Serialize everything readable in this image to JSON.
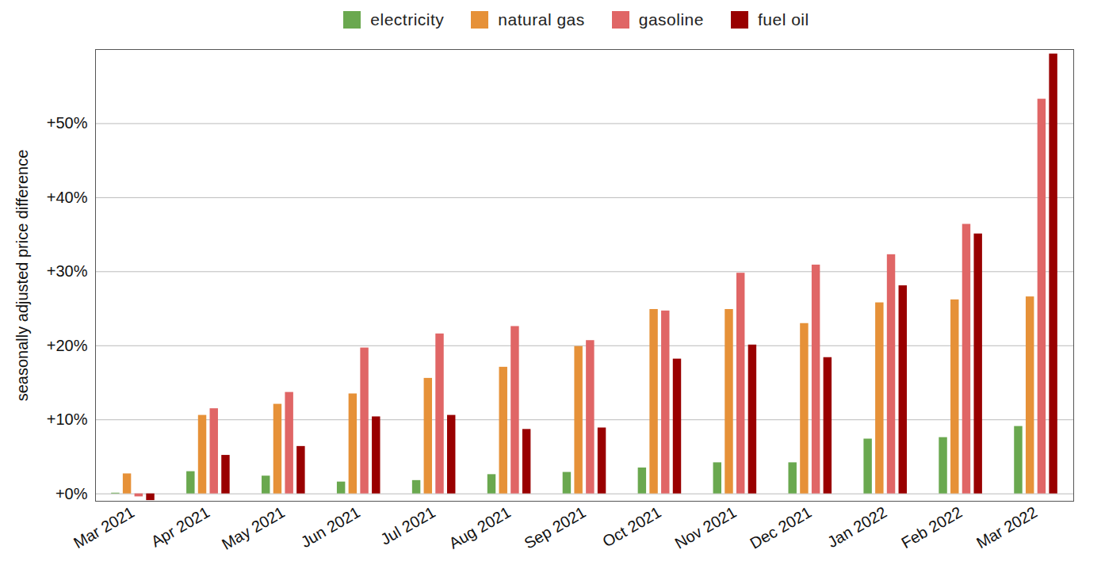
{
  "chart_data": {
    "type": "bar",
    "categories": [
      "Mar 2021",
      "Apr 2021",
      "May 2021",
      "Jun 2021",
      "Jul 2021",
      "Aug 2021",
      "Sep 2021",
      "Oct 2021",
      "Nov 2021",
      "Dec 2021",
      "Jan 2022",
      "Feb 2022",
      "Mar 2022"
    ],
    "series": [
      {
        "name": "electricity",
        "color": "#6aa84f",
        "values": [
          0.1,
          3.0,
          2.4,
          1.6,
          1.8,
          2.6,
          2.9,
          3.5,
          4.2,
          4.2,
          7.4,
          7.6,
          9.1
        ]
      },
      {
        "name": "natural gas",
        "color": "#e69138",
        "values": [
          2.7,
          10.6,
          12.1,
          13.5,
          15.6,
          17.1,
          19.9,
          24.9,
          24.9,
          23.0,
          25.8,
          26.2,
          26.6
        ]
      },
      {
        "name": "gasoline",
        "color": "#e06666",
        "values": [
          -0.4,
          11.5,
          13.7,
          19.7,
          21.6,
          22.6,
          20.7,
          24.7,
          29.8,
          30.9,
          32.3,
          36.4,
          53.3
        ]
      },
      {
        "name": "fuel oil",
        "color": "#990000",
        "values": [
          -0.9,
          5.2,
          6.4,
          10.4,
          10.6,
          8.7,
          8.9,
          18.2,
          20.1,
          18.4,
          28.1,
          35.1,
          59.4
        ]
      }
    ],
    "y_label": "seasonally adjusted price difference",
    "ylim": [
      -1,
      60
    ],
    "yticks": [
      {
        "value": 0,
        "label": "+0%"
      },
      {
        "value": 10,
        "label": "+10%"
      },
      {
        "value": 20,
        "label": "+20%"
      },
      {
        "value": 30,
        "label": "+30%"
      },
      {
        "value": 40,
        "label": "+40%"
      },
      {
        "value": 50,
        "label": "+50%"
      }
    ],
    "grid": true,
    "legend": "top"
  }
}
